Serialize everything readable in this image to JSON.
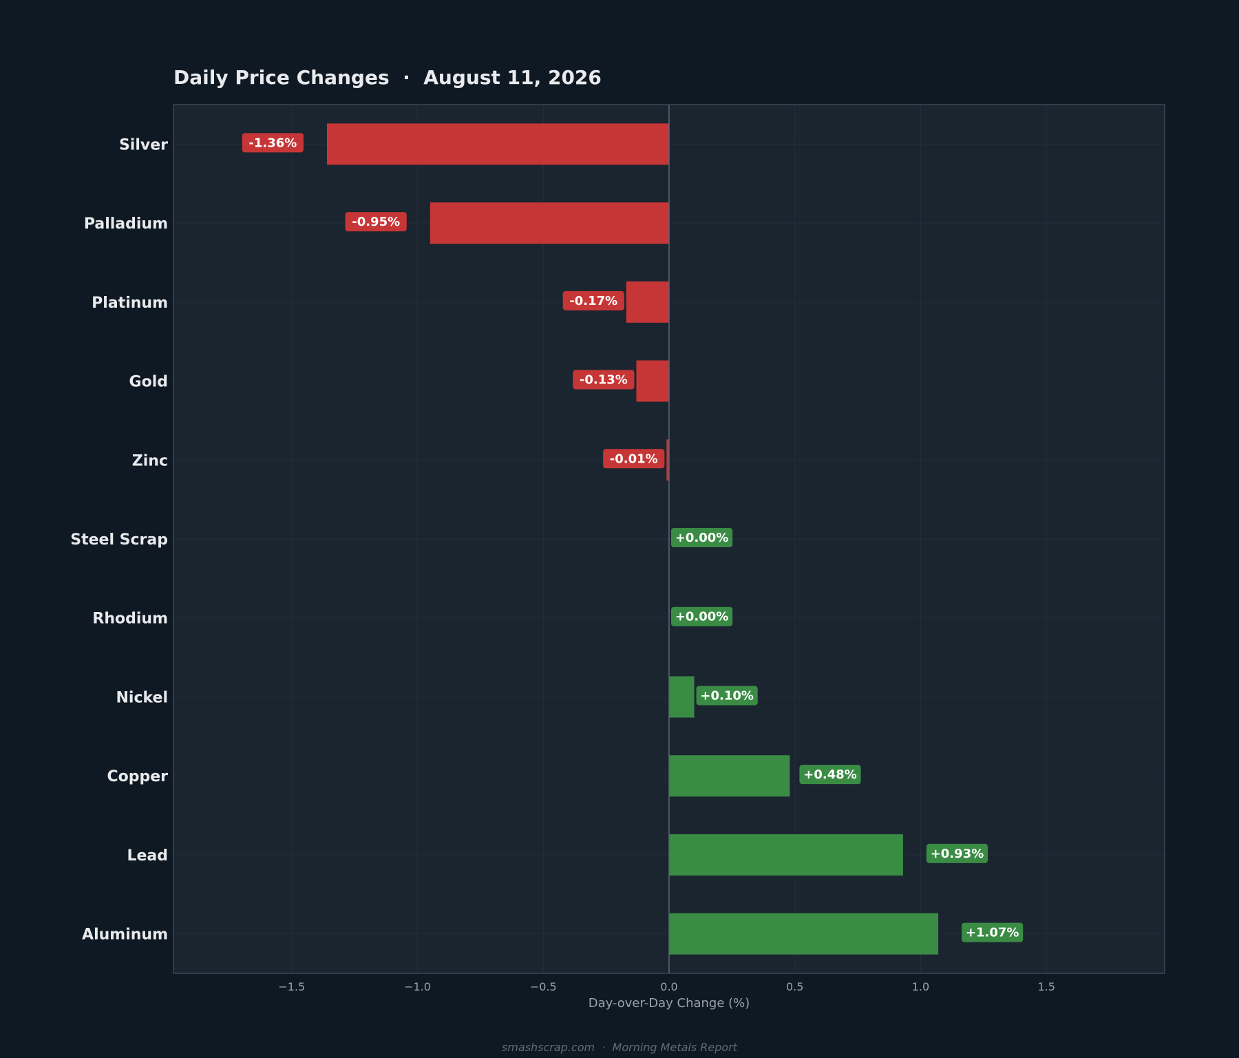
{
  "colors": {
    "page_bg": "#0f1923",
    "plot_bg": "#1b2530",
    "frame": "#3a4754",
    "gridline": "#232e3a",
    "negative": "#c73636",
    "positive": "#3a8c45"
  },
  "chart_data": {
    "type": "bar",
    "orientation": "horizontal",
    "title": "Daily Price Changes  ·  August 11, 2026",
    "xlabel": "Day-over-Day Change (%)",
    "ylabel": "",
    "xlim": [
      -1.97,
      1.97
    ],
    "xticks": [
      -1.5,
      -1.0,
      -0.5,
      0.0,
      0.5,
      1.0,
      1.5
    ],
    "xtick_labels": [
      "−1.5",
      "−1.0",
      "−0.5",
      "0.0",
      "0.5",
      "1.0",
      "1.5"
    ],
    "grid": true,
    "categories": [
      "Silver",
      "Palladium",
      "Platinum",
      "Gold",
      "Zinc",
      "Steel Scrap",
      "Rhodium",
      "Nickel",
      "Copper",
      "Lead",
      "Aluminum"
    ],
    "values": [
      -1.36,
      -0.95,
      -0.17,
      -0.13,
      -0.01,
      0.0,
      0.0,
      0.1,
      0.48,
      0.93,
      1.07
    ],
    "value_labels": [
      "-1.36%",
      "-0.95%",
      "-0.17%",
      "-0.13%",
      "-0.01%",
      "+0.00%",
      "+0.00%",
      "+0.10%",
      "+0.48%",
      "+0.93%",
      "+1.07%"
    ]
  },
  "footer": "smashscrap.com  ·  Morning Metals Report"
}
